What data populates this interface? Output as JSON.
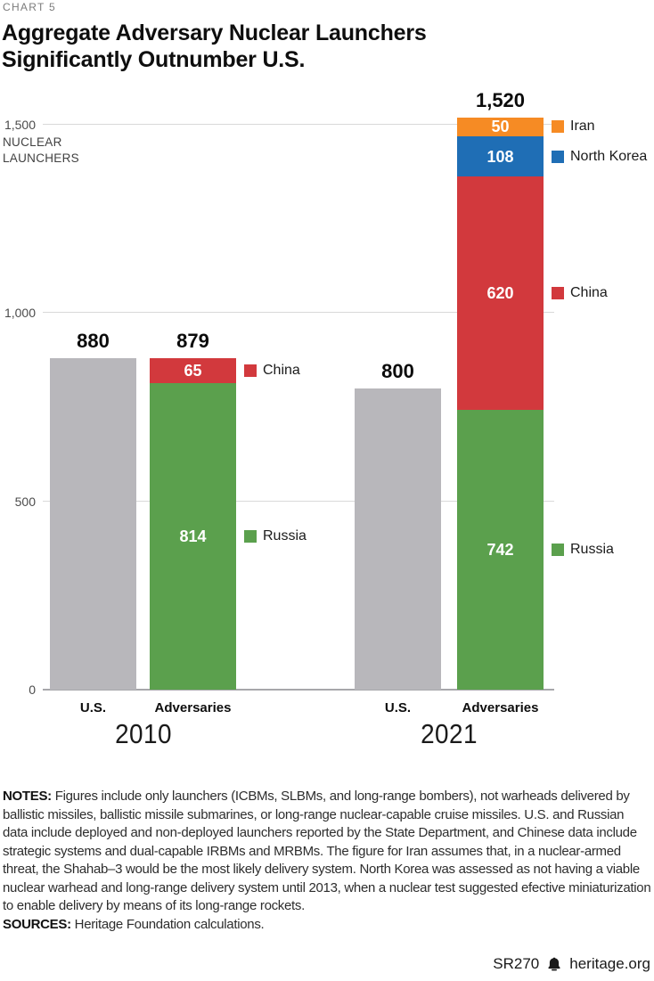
{
  "page": {
    "kicker": "CHART 5",
    "title": "Aggregate Adversary Nuclear Launchers Significantly Outnumber U.S.",
    "footer": {
      "report_id": "SR270",
      "site": "heritage.org"
    }
  },
  "notes": {
    "label": "NOTES:",
    "text": "Figures include only launchers (ICBMs, SLBMs, and long-range bombers), not warheads delivered by ballistic missiles, ballistic missile submarines, or long-range nuclear-capable cruise missiles. U.S. and Russian data include deployed and non-deployed launchers reported by the State Department, and Chinese data include strategic systems and dual-capable IRBMs and MRBMs. The figure for Iran assumes that, in a nuclear-armed threat, the Shahab–3 would be the most likely delivery system. North Korea was assessed as not having a viable nuclear warhead and long-range delivery system until 2013, when a nuclear test suggested efective miniaturization to enable delivery by means of its long-range rockets.",
    "sources_label": "SOURCES:",
    "sources_text": "Heritage Foundation calculations."
  },
  "chart_data": {
    "type": "bar",
    "stacked": true,
    "title": "Aggregate Adversary Nuclear Launchers Significantly Outnumber U.S.",
    "ylabel": "NUCLEAR LAUNCHERS",
    "ylim": [
      0,
      1500
    ],
    "grid": true,
    "legend_position": "right-of-adversary-bars",
    "yticks": [
      {
        "value": 0,
        "label": "0"
      },
      {
        "value": 500,
        "label": "500"
      },
      {
        "value": 1000,
        "label": "1,000"
      },
      {
        "value": 1500,
        "label": "1,500"
      }
    ],
    "colors": {
      "us": "#b8b7bb",
      "russia": "#5ba04d",
      "china": "#d2393d",
      "north_korea": "#1f6eb5",
      "iran": "#f68b24"
    },
    "groups": [
      {
        "year": "2010",
        "bars": [
          {
            "category": "U.S.",
            "total_label": "880",
            "segments": [
              {
                "name": "U.S.",
                "value": 880,
                "color_key": "us",
                "show_value": false,
                "legend": false
              }
            ]
          },
          {
            "category": "Adversaries",
            "total_label": "879",
            "segments": [
              {
                "name": "Russia",
                "value": 814,
                "color_key": "russia",
                "show_value": true,
                "legend": true
              },
              {
                "name": "China",
                "value": 65,
                "color_key": "china",
                "show_value": true,
                "legend": true
              }
            ]
          }
        ]
      },
      {
        "year": "2021",
        "bars": [
          {
            "category": "U.S.",
            "total_label": "800",
            "segments": [
              {
                "name": "U.S.",
                "value": 800,
                "color_key": "us",
                "show_value": false,
                "legend": false
              }
            ]
          },
          {
            "category": "Adversaries",
            "total_label": "1,520",
            "segments": [
              {
                "name": "Russia",
                "value": 742,
                "color_key": "russia",
                "show_value": true,
                "legend": true
              },
              {
                "name": "China",
                "value": 620,
                "color_key": "china",
                "show_value": true,
                "legend": true
              },
              {
                "name": "North Korea",
                "value": 108,
                "color_key": "north_korea",
                "show_value": true,
                "legend": true
              },
              {
                "name": "Iran",
                "value": 50,
                "color_key": "iran",
                "show_value": true,
                "legend": true
              }
            ]
          }
        ]
      }
    ]
  }
}
